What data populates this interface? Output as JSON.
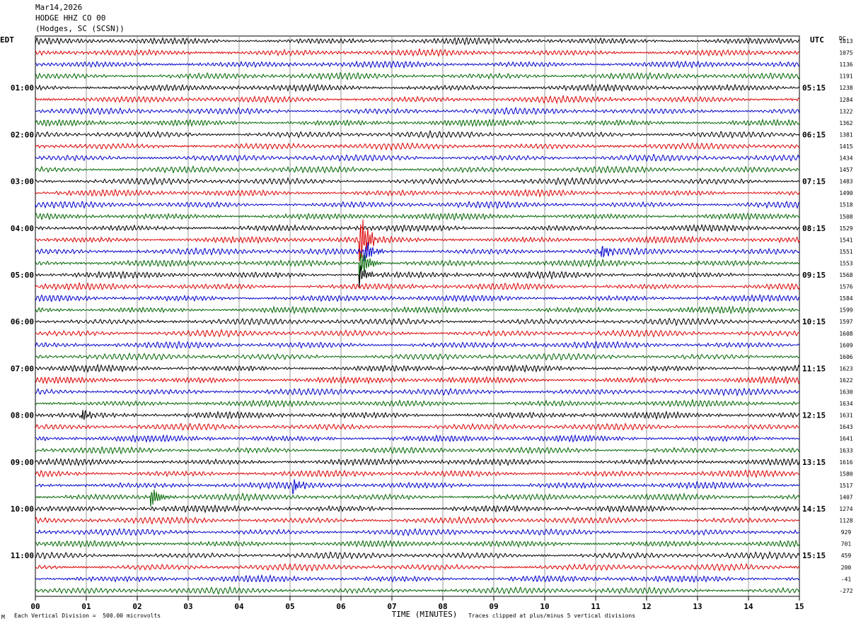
{
  "header": {
    "date": "Mar14,2026",
    "station": "HODGE HHZ CO 00",
    "location": "(Hodges, SC (SCSN))"
  },
  "left_tz": "EDT",
  "right_tz": "UTC",
  "right_col_label": "DC",
  "footer": {
    "scale_note": "Each Vertical Division =  500.00 microvolts",
    "clip_note": "Traces clipped at plus/minus 5 vertical divisions",
    "mark": "M"
  },
  "colors": {
    "trace_cycle": [
      "#000000",
      "#dd0000",
      "#0000cc",
      "#006600"
    ],
    "grid": "#555555"
  },
  "chart_data": {
    "type": "line",
    "title": "",
    "xlabel": "TIME (MINUTES)",
    "ylabel": "",
    "xlim": [
      0,
      15
    ],
    "x_ticks": [
      "00",
      "01",
      "02",
      "03",
      "04",
      "05",
      "06",
      "07",
      "08",
      "09",
      "10",
      "11",
      "12",
      "13",
      "14",
      "15"
    ],
    "left_hour_labels": [
      "01:00",
      "02:00",
      "03:00",
      "04:00",
      "05:00",
      "06:00",
      "07:00",
      "08:00",
      "09:00",
      "10:00",
      "11:00"
    ],
    "right_hour_labels": [
      "05:15",
      "06:15",
      "07:15",
      "08:15",
      "09:15",
      "10:15",
      "11:15",
      "12:15",
      "13:15",
      "14:15",
      "15:15"
    ],
    "trace_count": 48,
    "dc_offsets": [
      "1013",
      "1075",
      "1136",
      "1191",
      "1238",
      "1284",
      "1322",
      "1362",
      "1381",
      "1415",
      "1434",
      "1457",
      "1483",
      "1490",
      "1518",
      "1508",
      "1529",
      "1541",
      "1551",
      "1553",
      "1568",
      "1576",
      "1584",
      "1599",
      "1597",
      "1608",
      "1609",
      "1606",
      "1623",
      "1622",
      "1630",
      "1634",
      "1631",
      "1643",
      "1641",
      "1633",
      "1616",
      "1580",
      "1517",
      "1407",
      "1274",
      "1128",
      "929",
      "701",
      "459",
      "200",
      "-41",
      "-272"
    ],
    "events": [
      {
        "trace": 17,
        "minute": 6.35,
        "amp": 3.2
      },
      {
        "trace": 18,
        "minute": 6.45,
        "amp": 1.2
      },
      {
        "trace": 18,
        "minute": 11.1,
        "amp": 0.7
      },
      {
        "trace": 19,
        "minute": 6.35,
        "amp": 1.8
      },
      {
        "trace": 20,
        "minute": 6.35,
        "amp": 1.0
      },
      {
        "trace": 32,
        "minute": 0.9,
        "amp": 0.6
      },
      {
        "trace": 38,
        "minute": 5.05,
        "amp": 0.7
      },
      {
        "trace": 39,
        "minute": 2.25,
        "amp": 1.1
      }
    ]
  }
}
